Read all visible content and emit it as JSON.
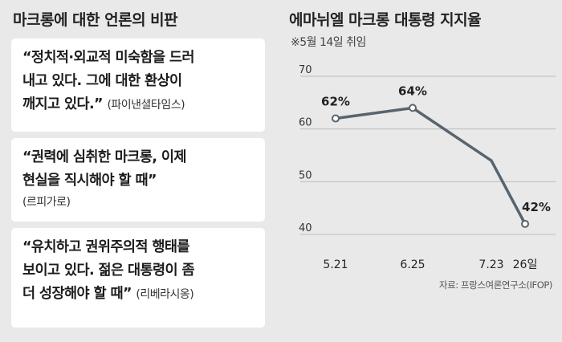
{
  "left": {
    "title": "마크롱에 대한 언론의 비판",
    "quotes": [
      {
        "lines": [
          "“정치적·외교적 미숙함을 드러",
          "내고 있다. 그에 대한 환상이",
          "깨지고 있다.”"
        ],
        "source": "(파이낸셜타임스)"
      },
      {
        "lines": [
          "“권력에 심취한 마크롱, 이제",
          "현실을 직시해야 할 때”"
        ],
        "source": "(르피가로)"
      },
      {
        "lines": [
          "“유치하고 권위주의적 행태를",
          "보이고 있다. 젊은 대통령이 좀",
          "더 성장해야 할 때”"
        ],
        "source": "(리베라시옹)"
      }
    ]
  },
  "chart_data": {
    "type": "line",
    "title": "에마뉘엘 마크롱 대통령 지지율",
    "subtitle": "※5월 14일 취임",
    "categories": [
      "5.21",
      "6.25",
      "7.23",
      "26일"
    ],
    "values": [
      62,
      64,
      54,
      42
    ],
    "data_labels": [
      "62%",
      "64%",
      "",
      "42%"
    ],
    "marker_points": [
      0,
      1,
      3
    ],
    "y_ticks": [
      "70",
      "60",
      "50",
      "40"
    ],
    "ylim": [
      40,
      70
    ],
    "grid": true,
    "line_color": "#58646e",
    "grid_color": "#bdbdbd",
    "source": "자료: 프랑스여론연구소(IFOP)"
  }
}
